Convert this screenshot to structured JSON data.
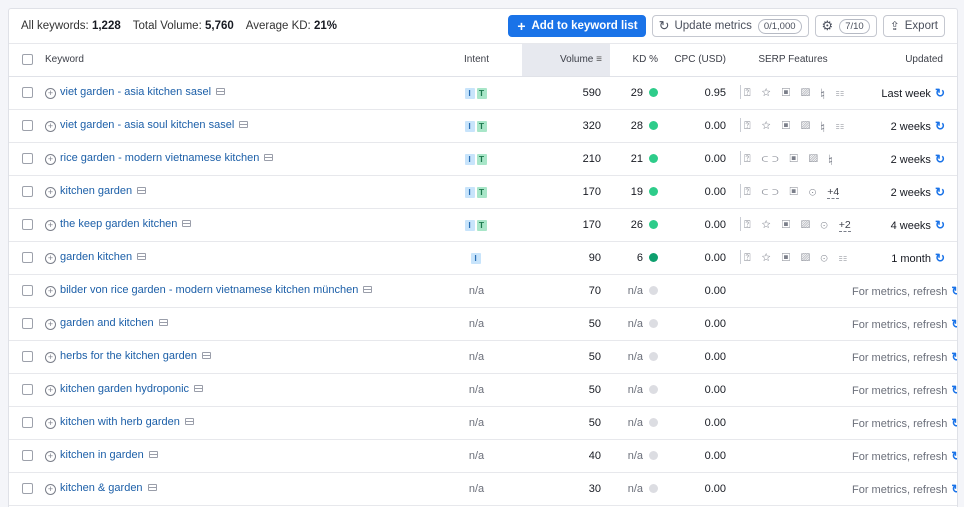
{
  "summary": {
    "all_keywords_label": "All keywords:",
    "all_keywords_value": "1,228",
    "total_volume_label": "Total Volume:",
    "total_volume_value": "5,760",
    "avg_kd_label": "Average KD:",
    "avg_kd_value": "21%"
  },
  "toolbar": {
    "add_label": "Add to keyword list",
    "update_label": "Update metrics",
    "update_count": "0/1,000",
    "settings_count": "7/10",
    "export_label": "Export"
  },
  "headers": {
    "keyword": "Keyword",
    "intent": "Intent",
    "volume": "Volume",
    "kd": "KD %",
    "cpc": "CPC (USD)",
    "serp": "SERP Features",
    "updated": "Updated"
  },
  "colors": {
    "accent": "#1a73e8",
    "kd_easy": "#2ecc8a",
    "kd_very_easy": "#0e9f6e",
    "kd_na": "#dcdde2"
  },
  "rows": [
    {
      "keyword": "viet garden - asia kitchen sasel",
      "intent": [
        "I",
        "T"
      ],
      "volume": "590",
      "kd": "29",
      "kd_color": "#2ecc8a",
      "cpc": "0.95",
      "serp": "⍰ ☆ ▣ ▨ ♮ ☷",
      "serp_more": "",
      "updated": "Last week",
      "updated_muted": false
    },
    {
      "keyword": "viet garden - asia soul kitchen sasel",
      "intent": [
        "I",
        "T"
      ],
      "volume": "320",
      "kd": "28",
      "kd_color": "#2ecc8a",
      "cpc": "0.00",
      "serp": "⍰ ☆ ▣ ▨ ♮ ☷",
      "serp_more": "",
      "updated": "2 weeks",
      "updated_muted": false
    },
    {
      "keyword": "rice garden - modern vietnamese kitchen",
      "intent": [
        "I",
        "T"
      ],
      "volume": "210",
      "kd": "21",
      "kd_color": "#2ecc8a",
      "cpc": "0.00",
      "serp": "⍰ ⊂⊃ ▣ ▨ ♮",
      "serp_more": "",
      "updated": "2 weeks",
      "updated_muted": false
    },
    {
      "keyword": "kitchen garden",
      "intent": [
        "I",
        "T"
      ],
      "volume": "170",
      "kd": "19",
      "kd_color": "#2ecc8a",
      "cpc": "0.00",
      "serp": "⍰ ⊂⊃ ▣ ⊙",
      "serp_more": "+4",
      "updated": "2 weeks",
      "updated_muted": false
    },
    {
      "keyword": "the keep garden kitchen",
      "intent": [
        "I",
        "T"
      ],
      "volume": "170",
      "kd": "26",
      "kd_color": "#2ecc8a",
      "cpc": "0.00",
      "serp": "⍰ ☆ ▣ ▨ ⊙",
      "serp_more": "+2",
      "updated": "4 weeks",
      "updated_muted": false
    },
    {
      "keyword": "garden kitchen",
      "intent": [
        "I"
      ],
      "volume": "90",
      "kd": "6",
      "kd_color": "#0e9f6e",
      "cpc": "0.00",
      "serp": "⍰ ☆ ▣ ▨ ⊙ ☷",
      "serp_more": "",
      "updated": "1 month",
      "updated_muted": false
    },
    {
      "keyword": "bilder von rice garden - modern vietnamese kitchen münchen",
      "intent": [],
      "intent_text": "n/a",
      "volume": "70",
      "kd": "n/a",
      "kd_color": "#dcdde2",
      "cpc": "0.00",
      "serp": "",
      "serp_more": "",
      "updated": "For metrics, refresh",
      "updated_muted": true
    },
    {
      "keyword": "garden and kitchen",
      "intent": [],
      "intent_text": "n/a",
      "volume": "50",
      "kd": "n/a",
      "kd_color": "#dcdde2",
      "cpc": "0.00",
      "serp": "",
      "serp_more": "",
      "updated": "For metrics, refresh",
      "updated_muted": true
    },
    {
      "keyword": "herbs for the kitchen garden",
      "intent": [],
      "intent_text": "n/a",
      "volume": "50",
      "kd": "n/a",
      "kd_color": "#dcdde2",
      "cpc": "0.00",
      "serp": "",
      "serp_more": "",
      "updated": "For metrics, refresh",
      "updated_muted": true
    },
    {
      "keyword": "kitchen garden hydroponic",
      "intent": [],
      "intent_text": "n/a",
      "volume": "50",
      "kd": "n/a",
      "kd_color": "#dcdde2",
      "cpc": "0.00",
      "serp": "",
      "serp_more": "",
      "updated": "For metrics, refresh",
      "updated_muted": true
    },
    {
      "keyword": "kitchen with herb garden",
      "intent": [],
      "intent_text": "n/a",
      "volume": "50",
      "kd": "n/a",
      "kd_color": "#dcdde2",
      "cpc": "0.00",
      "serp": "",
      "serp_more": "",
      "updated": "For metrics, refresh",
      "updated_muted": true
    },
    {
      "keyword": "kitchen in garden",
      "intent": [],
      "intent_text": "n/a",
      "volume": "40",
      "kd": "n/a",
      "kd_color": "#dcdde2",
      "cpc": "0.00",
      "serp": "",
      "serp_more": "",
      "updated": "For metrics, refresh",
      "updated_muted": true
    },
    {
      "keyword": "kitchen & garden",
      "intent": [],
      "intent_text": "n/a",
      "volume": "30",
      "kd": "n/a",
      "kd_color": "#dcdde2",
      "cpc": "0.00",
      "serp": "",
      "serp_more": "",
      "updated": "For metrics, refresh",
      "updated_muted": true
    }
  ]
}
